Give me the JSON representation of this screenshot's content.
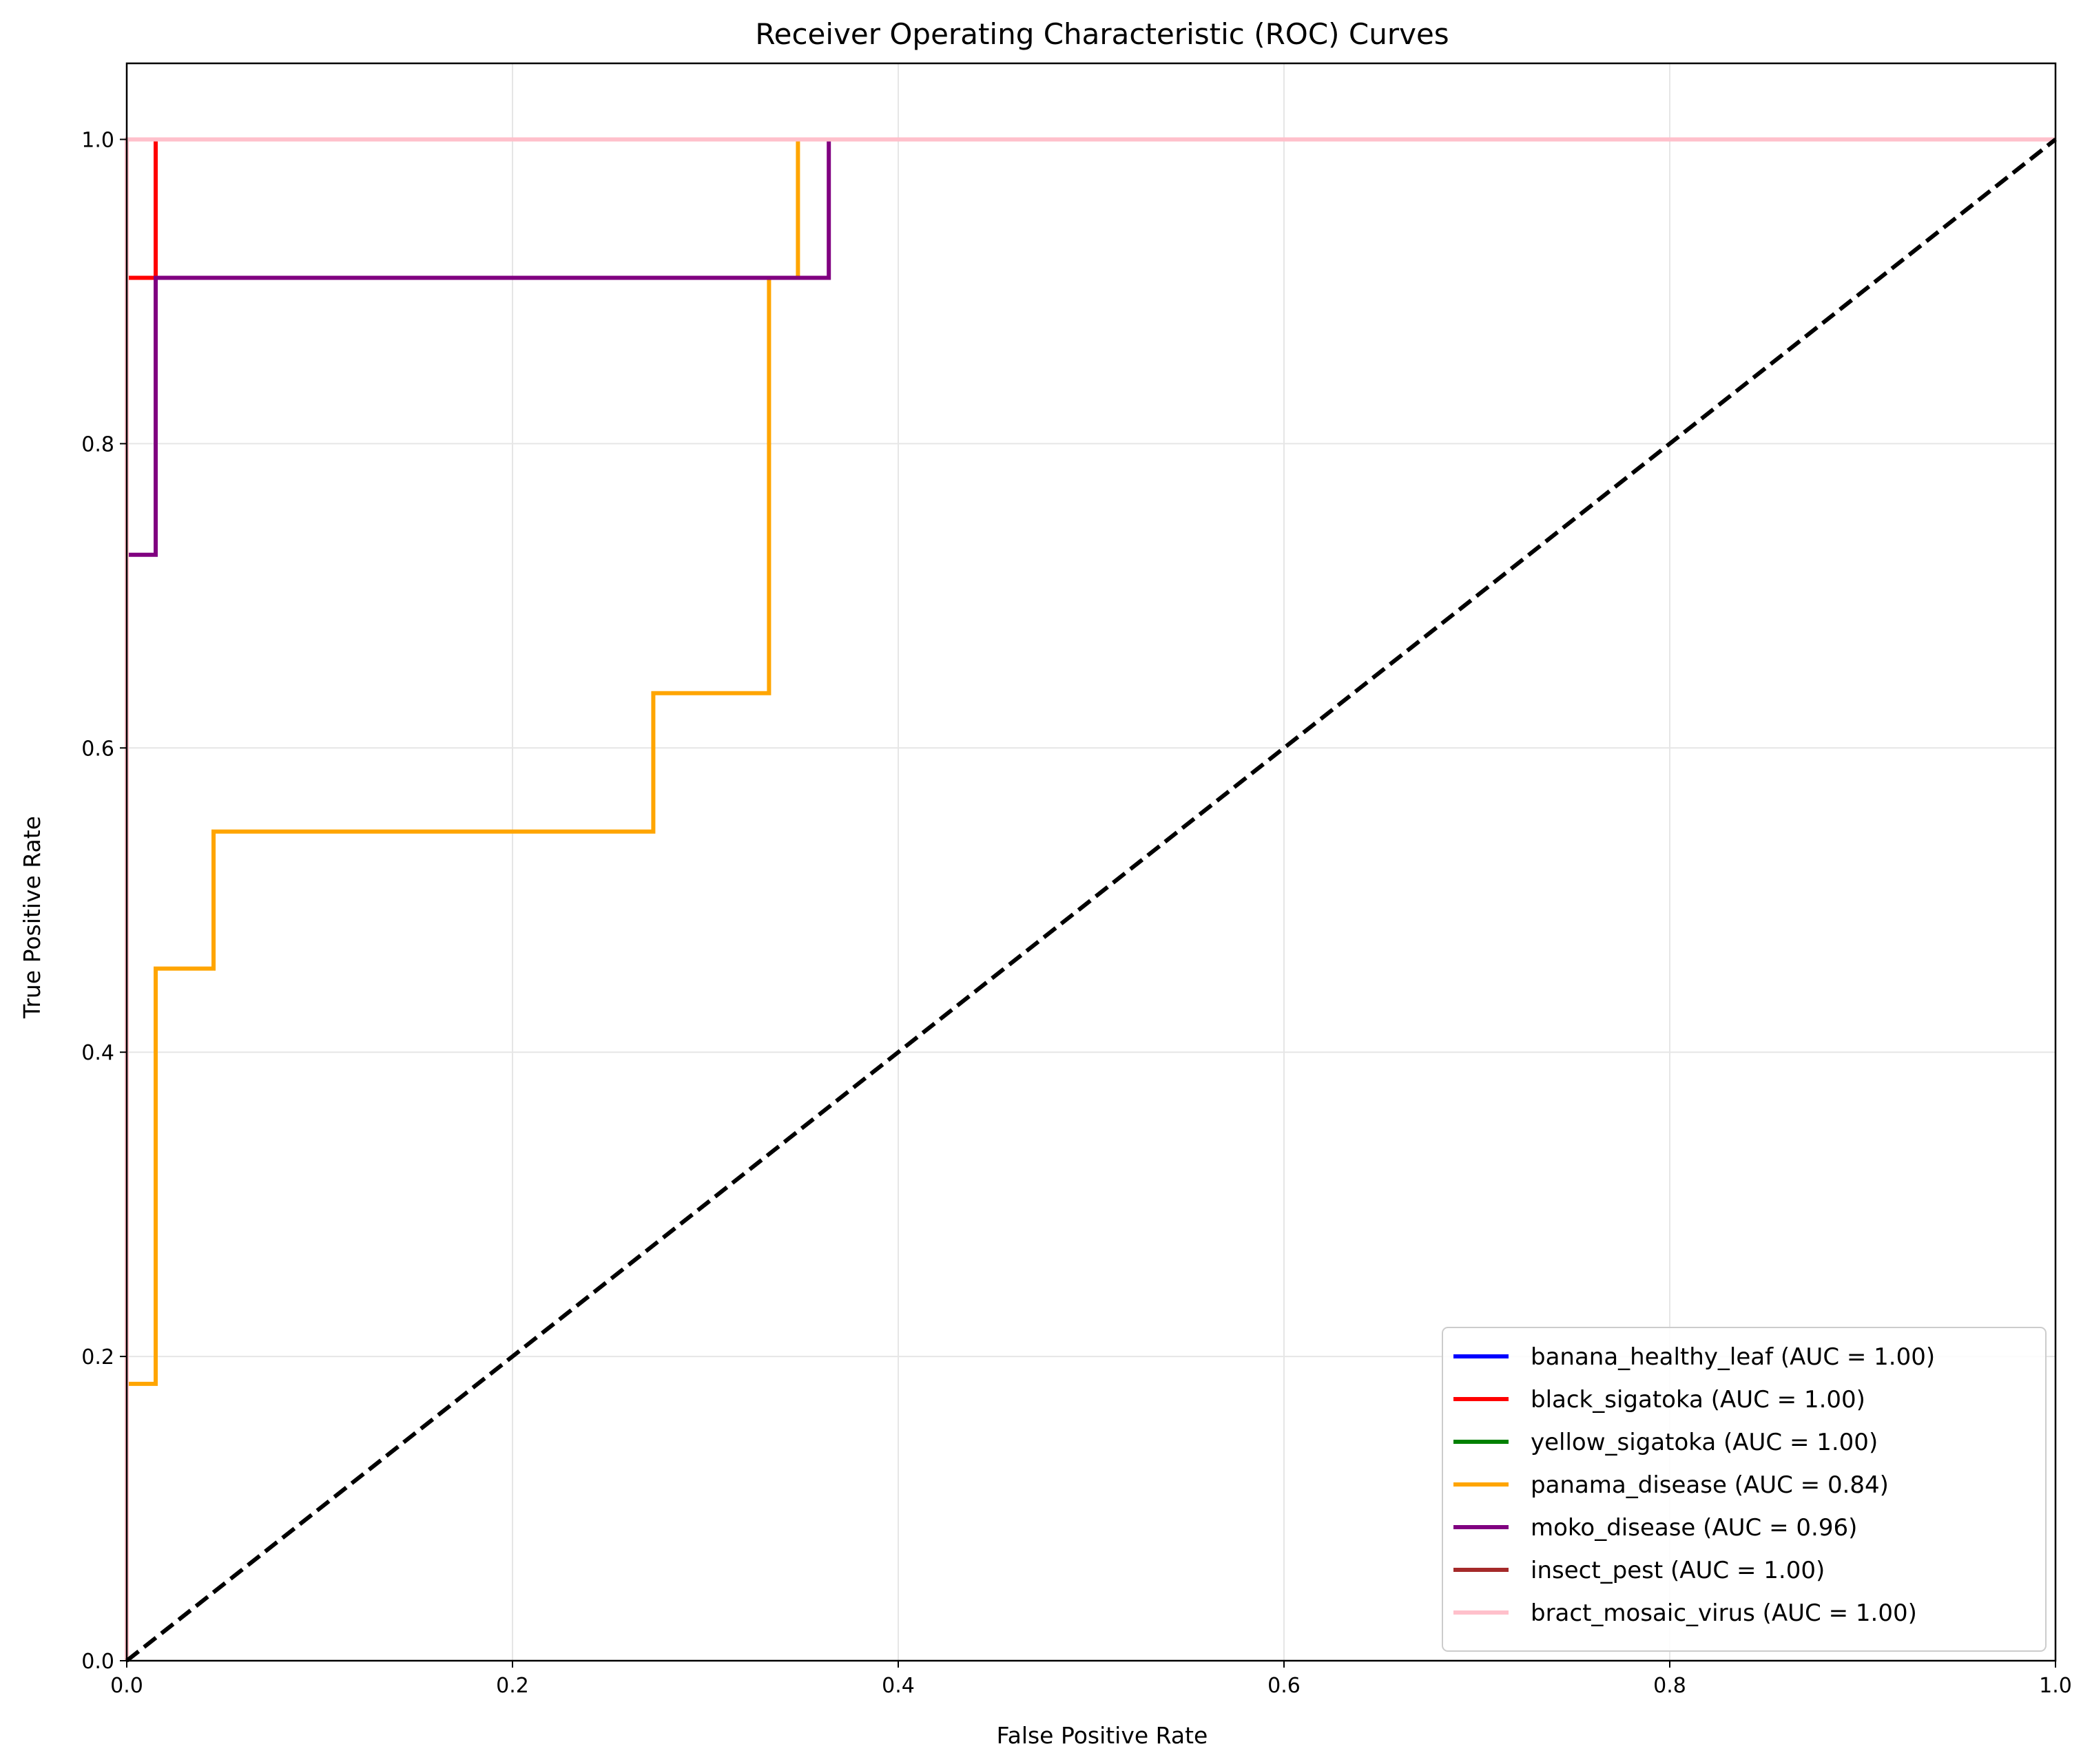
{
  "chart_data": {
    "type": "line",
    "title": "Receiver Operating Characteristic (ROC) Curves",
    "xlabel": "False Positive Rate",
    "ylabel": "True Positive Rate",
    "xlim": [
      0.0,
      1.0
    ],
    "ylim": [
      0.0,
      1.05
    ],
    "x_ticks": [
      "0.0",
      "0.2",
      "0.4",
      "0.6",
      "0.8",
      "1.0"
    ],
    "y_ticks": [
      "0.0",
      "0.2",
      "0.4",
      "0.6",
      "0.8",
      "1.0"
    ],
    "grid": true,
    "legend_position": "bottom-right",
    "series": [
      {
        "name": "banana_healthy_leaf (AUC = 1.00)",
        "color": "#0000ff",
        "points": [
          [
            0,
            0
          ],
          [
            0,
            0.909
          ],
          [
            0.015,
            0.909
          ],
          [
            0.015,
            1.0
          ],
          [
            1.0,
            1.0
          ]
        ]
      },
      {
        "name": "black_sigatoka (AUC = 1.00)",
        "color": "#ff0000",
        "points": [
          [
            0,
            0
          ],
          [
            0,
            0.909
          ],
          [
            0.015,
            0.909
          ],
          [
            0.015,
            1.0
          ],
          [
            1.0,
            1.0
          ]
        ]
      },
      {
        "name": "yellow_sigatoka (AUC = 1.00)",
        "color": "#008000",
        "points": [
          [
            0,
            0
          ],
          [
            0,
            1.0
          ],
          [
            1.0,
            1.0
          ]
        ]
      },
      {
        "name": "panama_disease (AUC = 0.84)",
        "color": "#ffa500",
        "points": [
          [
            0,
            0
          ],
          [
            0,
            0.182
          ],
          [
            0.015,
            0.182
          ],
          [
            0.015,
            0.455
          ],
          [
            0.045,
            0.455
          ],
          [
            0.045,
            0.545
          ],
          [
            0.273,
            0.545
          ],
          [
            0.273,
            0.636
          ],
          [
            0.333,
            0.636
          ],
          [
            0.333,
            0.909
          ],
          [
            0.348,
            0.909
          ],
          [
            0.348,
            1.0
          ],
          [
            1.0,
            1.0
          ]
        ]
      },
      {
        "name": "moko_disease (AUC = 0.96)",
        "color": "#800080",
        "points": [
          [
            0,
            0
          ],
          [
            0,
            0.727
          ],
          [
            0.015,
            0.727
          ],
          [
            0.015,
            0.909
          ],
          [
            0.364,
            0.909
          ],
          [
            0.364,
            1.0
          ],
          [
            1.0,
            1.0
          ]
        ]
      },
      {
        "name": "insect_pest (AUC = 1.00)",
        "color": "#a52a2a",
        "points": [
          [
            0,
            0
          ],
          [
            0,
            1.0
          ],
          [
            1.0,
            1.0
          ]
        ]
      },
      {
        "name": "bract_mosaic_virus (AUC = 1.00)",
        "color": "#ffc0cb",
        "points": [
          [
            0,
            0
          ],
          [
            0,
            1.0
          ],
          [
            1.0,
            1.0
          ]
        ]
      }
    ],
    "diagonal": {
      "color": "#000000",
      "style": "dashed",
      "points": [
        [
          0,
          0
        ],
        [
          1,
          1
        ]
      ]
    }
  }
}
